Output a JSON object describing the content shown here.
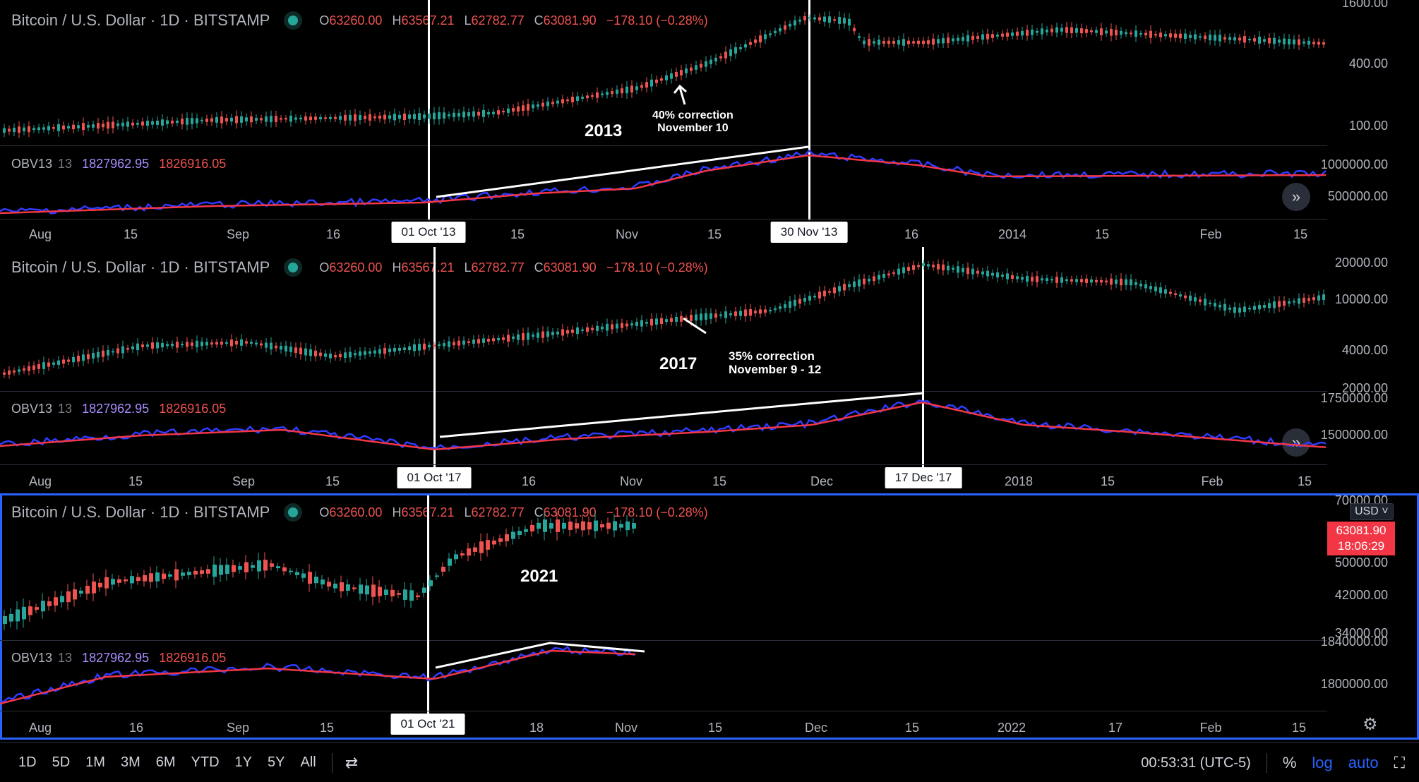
{
  "legend": {
    "title": "Bitcoin / U.S. Dollar · 1D · BITSTAMP",
    "open_key": "O",
    "open": "63260.00",
    "high_key": "H",
    "high": "63567.21",
    "low_key": "L",
    "low": "62782.77",
    "close_key": "C",
    "close": "63081.90",
    "change": "−178.10 (−0.28%)"
  },
  "obv_legend": {
    "name": "OBV13",
    "length": "13",
    "value_a": "1827962.95",
    "value_b": "1826916.05"
  },
  "panels": [
    {
      "year": "2013",
      "correction": [
        "40% correction",
        "November 10"
      ],
      "start_marker": "01 Oct '13",
      "end_marker": "30 Nov '13",
      "price_axis": [
        "1600.00",
        "400.00",
        "100.00"
      ],
      "obv_axis": [
        "1000000.00",
        "500000.00"
      ],
      "x_axis": [
        "Aug",
        "15",
        "Sep",
        "16",
        "15",
        "Nov",
        "15",
        "16",
        "2014",
        "15",
        "Feb",
        "15"
      ]
    },
    {
      "year": "2017",
      "correction": [
        "35% correction",
        "November 9 - 12"
      ],
      "start_marker": "01 Oct '17",
      "end_marker": "17 Dec '17",
      "price_axis": [
        "20000.00",
        "10000.00",
        "4000.00",
        "2000.00"
      ],
      "obv_axis": [
        "1750000.00",
        "1500000.00"
      ],
      "x_axis": [
        "Aug",
        "15",
        "Sep",
        "15",
        "16",
        "Nov",
        "15",
        "Dec",
        "2018",
        "15",
        "Feb",
        "15"
      ]
    },
    {
      "year": "2021",
      "start_marker": "01 Oct '21",
      "price_axis": [
        "70000.00",
        "50000.00",
        "42000.00",
        "34000.00"
      ],
      "obv_axis": [
        "1840000.00",
        "1800000.00"
      ],
      "x_axis": [
        "Aug",
        "16",
        "Sep",
        "15",
        "18",
        "Nov",
        "15",
        "Dec",
        "15",
        "2022",
        "17",
        "Feb",
        "15"
      ],
      "currency": "USD",
      "last_price": "63081.90",
      "countdown": "18:06:29"
    }
  ],
  "bottom_bar": {
    "timeframes": [
      "1D",
      "5D",
      "1M",
      "3M",
      "6M",
      "YTD",
      "1Y",
      "5Y",
      "All"
    ],
    "clock": "00:53:31 (UTC-5)",
    "percent": "%",
    "log": "log",
    "auto": "auto"
  },
  "colors": {
    "up": "#26a69a",
    "down": "#ef5350",
    "obv": "#2f3cff",
    "obv_ma": "#f23645",
    "accent": "#2962ff"
  },
  "icons": [
    "live-dot-icon",
    "goto-realtime-icon",
    "compare-icon",
    "settings-gear-icon",
    "fullscreen-icon"
  ]
}
